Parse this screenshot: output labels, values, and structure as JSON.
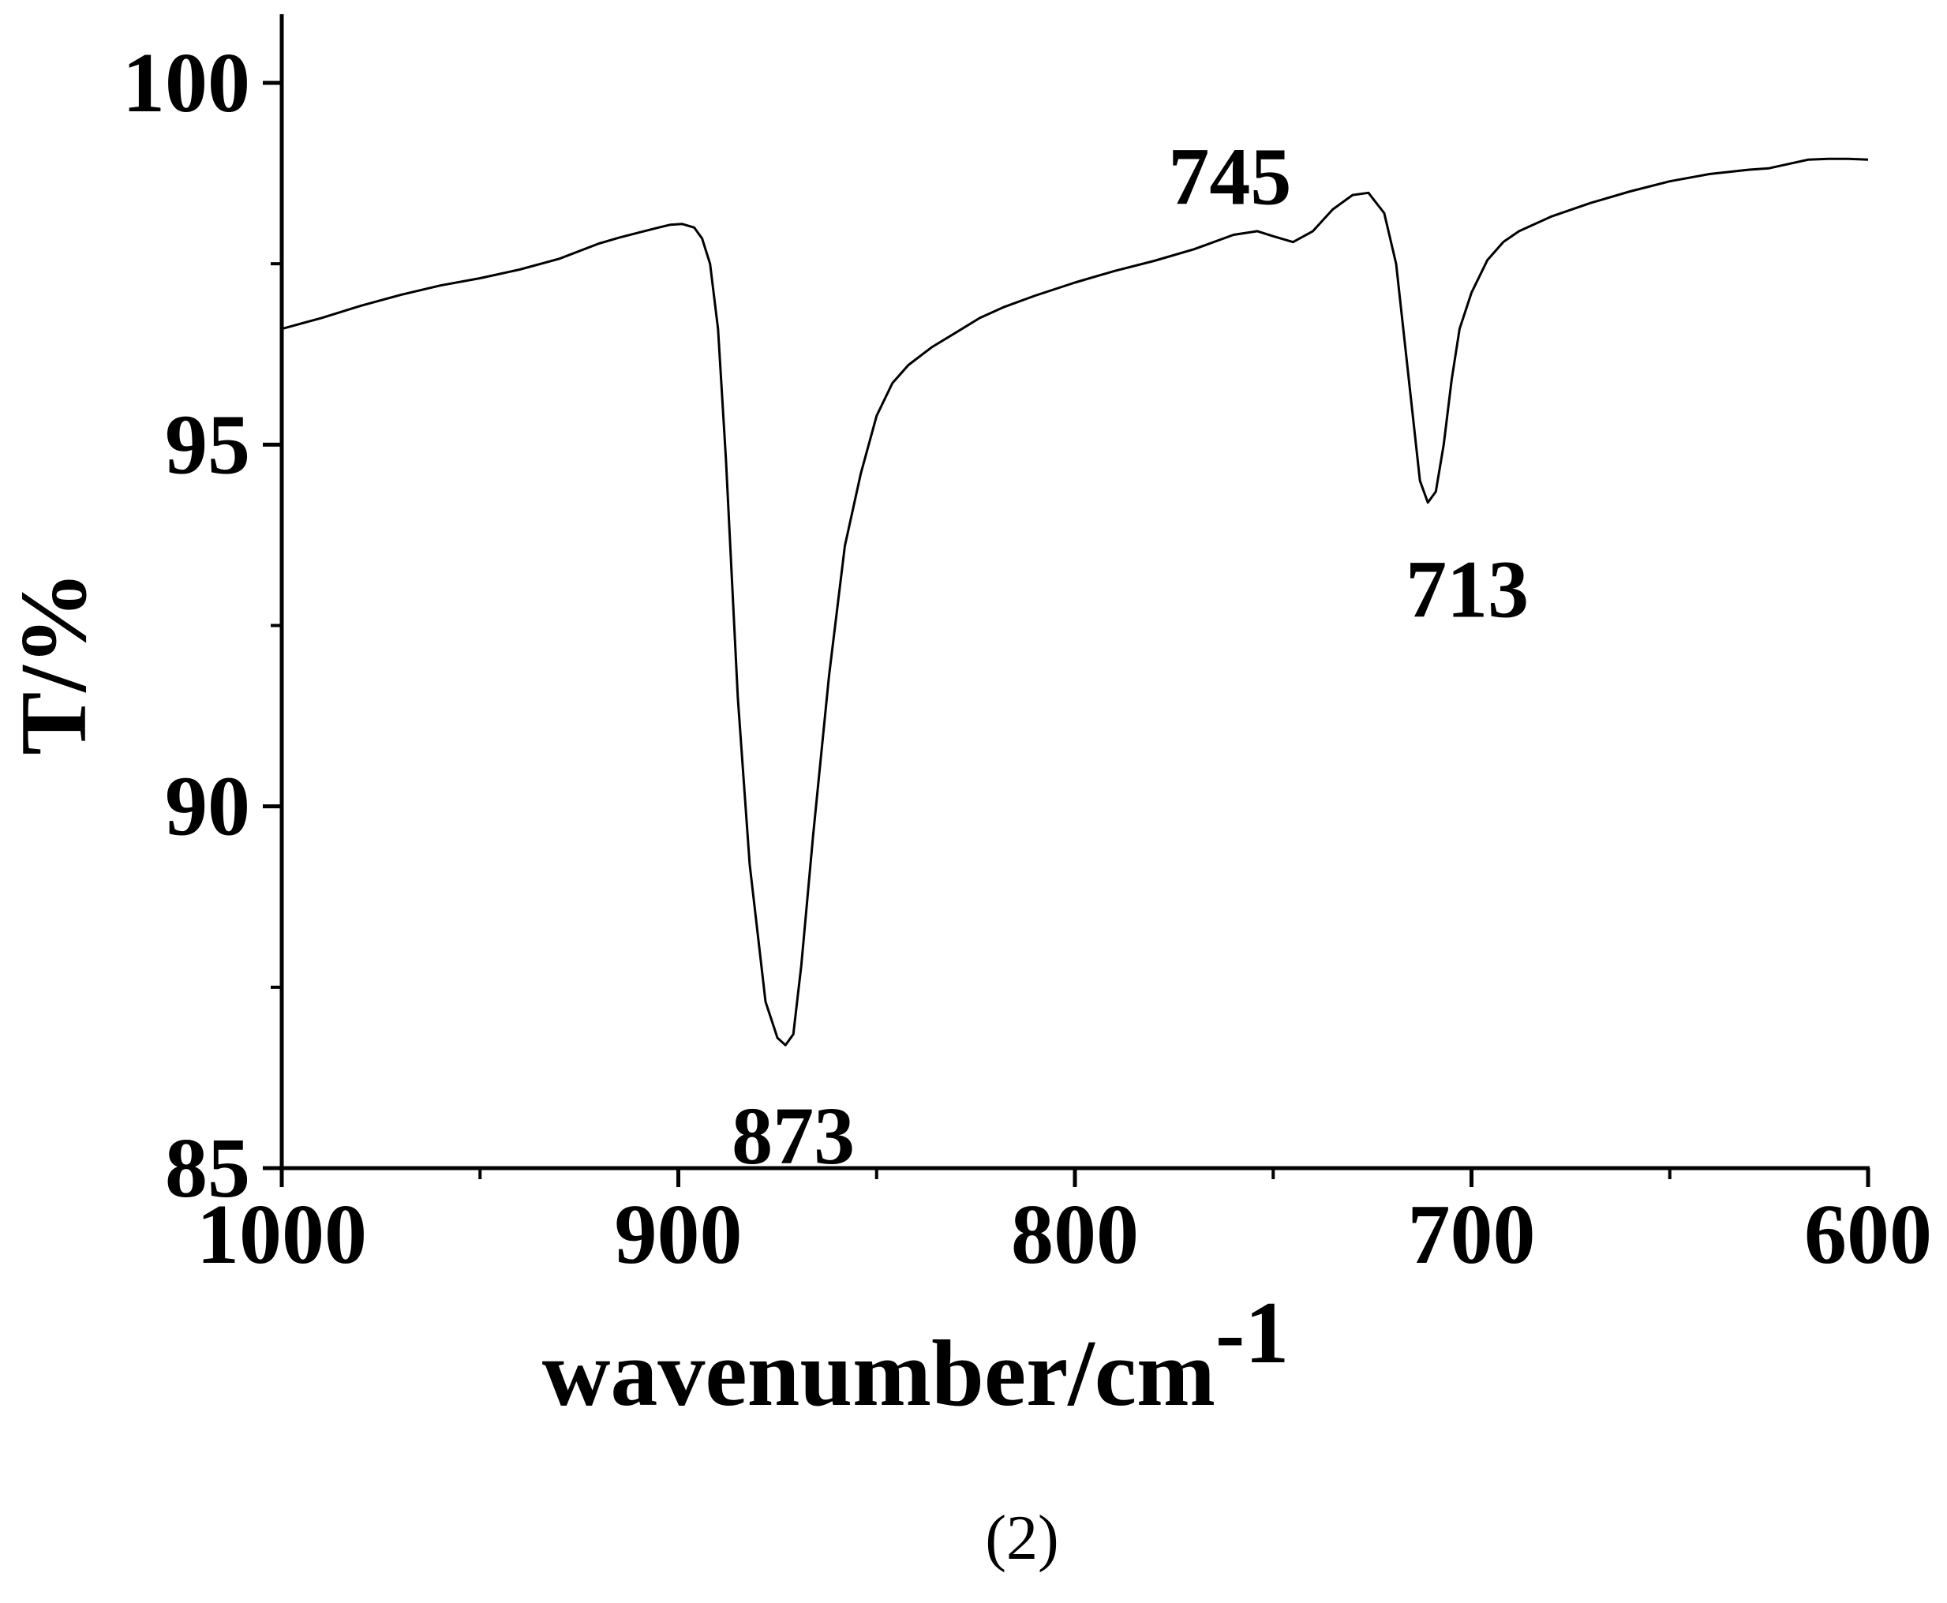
{
  "chart_data": {
    "type": "line",
    "xlabel": "wavenumber/cm",
    "xlabel_superscript": "-1",
    "ylabel": "T/%",
    "xlim": [
      1000,
      600
    ],
    "x_reversed": true,
    "ylim": [
      85,
      101
    ],
    "x_ticks": [
      1000,
      900,
      800,
      700,
      600
    ],
    "x_minor_ticks": [
      950,
      850,
      750,
      650
    ],
    "y_ticks": [
      85,
      90,
      95,
      100
    ],
    "y_minor_ticks": [
      87.5,
      92.5,
      97.5
    ],
    "grid": false,
    "legend": "none",
    "line_color": "#000000",
    "caption": "(2)",
    "series": [
      {
        "x": [
          1000,
          990,
          980,
          970,
          960,
          950,
          940,
          930,
          920,
          915,
          910,
          905,
          902,
          899,
          896,
          894,
          892,
          890,
          888,
          885,
          882,
          878,
          875,
          873,
          871,
          869,
          866,
          862,
          858,
          854,
          850,
          846,
          842,
          836,
          830,
          824,
          818,
          810,
          800,
          790,
          780,
          770,
          760,
          754,
          750,
          745,
          740,
          735,
          730,
          726,
          722,
          719,
          716,
          713,
          711,
          709,
          707,
          705,
          703,
          700,
          696,
          692,
          688,
          680,
          670,
          660,
          650,
          640,
          630,
          625,
          620,
          615,
          610,
          605,
          600
        ],
        "y": [
          96.6,
          96.75,
          96.92,
          97.07,
          97.2,
          97.3,
          97.42,
          97.57,
          97.78,
          97.86,
          97.93,
          98.0,
          98.04,
          98.05,
          98.0,
          97.85,
          97.5,
          96.6,
          94.8,
          91.5,
          89.2,
          87.3,
          86.8,
          86.7,
          86.85,
          87.8,
          89.6,
          91.8,
          93.6,
          94.6,
          95.4,
          95.85,
          96.1,
          96.35,
          96.55,
          96.75,
          96.9,
          97.06,
          97.24,
          97.4,
          97.54,
          97.7,
          97.9,
          97.95,
          97.88,
          97.8,
          97.95,
          98.25,
          98.45,
          98.48,
          98.2,
          97.5,
          96.0,
          94.5,
          94.2,
          94.35,
          95.0,
          95.9,
          96.6,
          97.1,
          97.55,
          97.8,
          97.95,
          98.15,
          98.34,
          98.5,
          98.64,
          98.74,
          98.8,
          98.82,
          98.88,
          98.94,
          98.95,
          98.95,
          98.94
        ]
      }
    ],
    "annotations": [
      {
        "text": "873",
        "x": 873,
        "y": 86.7
      },
      {
        "text": "745",
        "x": 745,
        "y": 97.8
      },
      {
        "text": "713",
        "x": 713,
        "y": 94.2
      }
    ]
  }
}
